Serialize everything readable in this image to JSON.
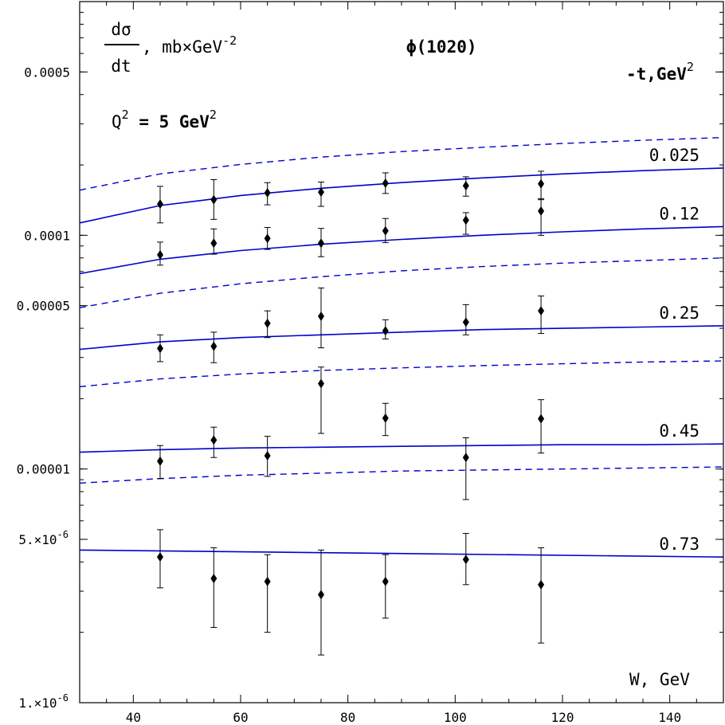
{
  "chart_data": {
    "type": "scatter",
    "title": "ϕ(1020)",
    "ylabel_numerator": "dσ",
    "ylabel_denominator": "dt",
    "ylabel_units_prefix": ", mb×GeV",
    "ylabel_units_exp": "-2",
    "legend_header_prefix": "-t,GeV",
    "legend_header_exp": "2",
    "condition_prefix": "Q",
    "condition_exp1": "2",
    "condition_mid": " = 5 GeV",
    "condition_exp2": "2",
    "xlabel": "W, GeV",
    "x_scale": "linear",
    "y_scale": "log",
    "xlim": [
      30,
      150
    ],
    "ylim": [
      1e-06,
      0.001
    ],
    "x_ticks": [
      40,
      60,
      80,
      100,
      120,
      140
    ],
    "x_tick_labels": [
      "40",
      "60",
      "80",
      "100",
      "120",
      "140"
    ],
    "y_ticks": [
      0.0005,
      0.0001,
      5e-05,
      1e-05,
      5e-06,
      1e-06
    ],
    "y_tick_labels": [
      "0.0005",
      "0.0001",
      "0.00005",
      "0.00001",
      "5.×10",
      "1.×10"
    ],
    "y_tick_label_exps": [
      "",
      "",
      "",
      "",
      "-6",
      "-6"
    ],
    "series": [
      {
        "name": "0.025",
        "color": "#0000cc",
        "points": [
          {
            "x": 45,
            "y": 0.000136,
            "ylo": 0.000113,
            "yhi": 0.000162
          },
          {
            "x": 55,
            "y": 0.000142,
            "ylo": 0.000117,
            "yhi": 0.000173
          },
          {
            "x": 65,
            "y": 0.000152,
            "ylo": 0.000135,
            "yhi": 0.000168
          },
          {
            "x": 75,
            "y": 0.000153,
            "ylo": 0.000133,
            "yhi": 0.000169
          },
          {
            "x": 87,
            "y": 0.000167,
            "ylo": 0.000151,
            "yhi": 0.000185
          },
          {
            "x": 102,
            "y": 0.000163,
            "ylo": 0.000147,
            "yhi": 0.000178
          },
          {
            "x": 116,
            "y": 0.000166,
            "ylo": 0.000142,
            "yhi": 0.000188
          }
        ],
        "curve": {
          "x": [
            30,
            45,
            60,
            75,
            90,
            105,
            120,
            135,
            150
          ],
          "y": [
            0.000113,
            0.000134,
            0.000148,
            0.000159,
            0.000168,
            0.000176,
            0.000183,
            0.000189,
            0.000194
          ]
        },
        "curve_dashed": {
          "x": [
            30,
            45,
            60,
            75,
            90,
            105,
            120,
            135,
            150
          ],
          "y": [
            0.000156,
            0.000183,
            0.000201,
            0.000216,
            0.000228,
            0.000238,
            0.000247,
            0.000255,
            0.000262
          ]
        }
      },
      {
        "name": "0.12",
        "color": "#0000cc",
        "points": [
          {
            "x": 45,
            "y": 8.25e-05,
            "ylo": 7.45e-05,
            "yhi": 9.35e-05
          },
          {
            "x": 55,
            "y": 9.25e-05,
            "ylo": 8.3e-05,
            "yhi": 0.0001065
          },
          {
            "x": 65,
            "y": 9.7e-05,
            "ylo": 8.7e-05,
            "yhi": 0.000108
          },
          {
            "x": 75,
            "y": 9.25e-05,
            "ylo": 8.1e-05,
            "yhi": 0.000107
          },
          {
            "x": 87,
            "y": 0.0001045,
            "ylo": 9.3e-05,
            "yhi": 0.000118
          },
          {
            "x": 102,
            "y": 0.000116,
            "ylo": 0.000101,
            "yhi": 0.000125
          },
          {
            "x": 116,
            "y": 0.000127,
            "ylo": 0.0001,
            "yhi": 0.0001435
          }
        ],
        "curve": {
          "x": [
            30,
            45,
            60,
            75,
            90,
            105,
            120,
            135,
            150
          ],
          "y": [
            6.85e-05,
            7.9e-05,
            8.6e-05,
            9.15e-05,
            9.6e-05,
            0.0001,
            0.0001035,
            0.0001065,
            0.000109
          ]
        },
        "curve_dashed": {
          "x": [
            30,
            45,
            60,
            75,
            90,
            105,
            120,
            135,
            150
          ],
          "y": [
            4.9e-05,
            5.65e-05,
            6.2e-05,
            6.65e-05,
            7.05e-05,
            7.35e-05,
            7.6e-05,
            7.8e-05,
            8e-05
          ]
        }
      },
      {
        "name": "0.25",
        "color": "#0000cc",
        "points": [
          {
            "x": 45,
            "y": 3.28e-05,
            "ylo": 2.88e-05,
            "yhi": 3.75e-05
          },
          {
            "x": 55,
            "y": 3.35e-05,
            "ylo": 2.85e-05,
            "yhi": 3.85e-05
          },
          {
            "x": 65,
            "y": 4.2e-05,
            "ylo": 3.65e-05,
            "yhi": 4.75e-05
          },
          {
            "x": 75,
            "y": 4.5e-05,
            "ylo": 3.3e-05,
            "yhi": 5.95e-05
          },
          {
            "x": 87,
            "y": 3.9e-05,
            "ylo": 3.6e-05,
            "yhi": 4.35e-05
          },
          {
            "x": 102,
            "y": 4.25e-05,
            "ylo": 3.75e-05,
            "yhi": 5.05e-05
          },
          {
            "x": 116,
            "y": 4.75e-05,
            "ylo": 3.8e-05,
            "yhi": 5.5e-05
          }
        ],
        "curve": {
          "x": [
            30,
            45,
            60,
            75,
            90,
            105,
            120,
            135,
            150
          ],
          "y": [
            3.25e-05,
            3.5e-05,
            3.65e-05,
            3.75e-05,
            3.85e-05,
            3.95e-05,
            4e-05,
            4.05e-05,
            4.1e-05
          ]
        },
        "curve_dashed": {
          "x": [
            30,
            45,
            60,
            75,
            90,
            105,
            120,
            135,
            150
          ],
          "y": [
            2.25e-05,
            2.43e-05,
            2.55e-05,
            2.64e-05,
            2.71e-05,
            2.77e-05,
            2.82e-05,
            2.87e-05,
            2.9e-05
          ]
        }
      },
      {
        "name": "0.45",
        "color": "#0000cc",
        "points": [
          {
            "x": 45,
            "y": 1.08e-05,
            "ylo": 9.1e-06,
            "yhi": 1.26e-05
          },
          {
            "x": 55,
            "y": 1.33e-05,
            "ylo": 1.12e-05,
            "yhi": 1.51e-05
          },
          {
            "x": 65,
            "y": 1.14e-05,
            "ylo": 9.3e-06,
            "yhi": 1.38e-05
          },
          {
            "x": 75,
            "y": 2.32e-05,
            "ylo": 1.42e-05,
            "yhi": 2.73e-05
          },
          {
            "x": 87,
            "y": 1.65e-05,
            "ylo": 1.39e-05,
            "yhi": 1.91e-05
          },
          {
            "x": 102,
            "y": 1.12e-05,
            "ylo": 7.4e-06,
            "yhi": 1.36e-05
          },
          {
            "x": 116,
            "y": 1.64e-05,
            "ylo": 1.17e-05,
            "yhi": 1.98e-05
          }
        ],
        "curve": {
          "x": [
            30,
            45,
            60,
            75,
            90,
            105,
            120,
            135,
            150
          ],
          "y": [
            1.18e-05,
            1.21e-05,
            1.23e-05,
            1.24e-05,
            1.25e-05,
            1.26e-05,
            1.27e-05,
            1.27e-05,
            1.28e-05
          ]
        },
        "curve_dashed": {
          "x": [
            30,
            45,
            60,
            75,
            90,
            105,
            120,
            135,
            150
          ],
          "y": [
            8.7e-06,
            9.1e-06,
            9.4e-06,
            9.6e-06,
            9.8e-06,
            9.9e-06,
            1e-05,
            1.01e-05,
            1.02e-05
          ]
        }
      },
      {
        "name": "0.73",
        "color": "#0000cc",
        "points": [
          {
            "x": 45,
            "y": 4.2e-06,
            "ylo": 3.1e-06,
            "yhi": 5.5e-06
          },
          {
            "x": 55,
            "y": 3.4e-06,
            "ylo": 2.1e-06,
            "yhi": 4.6e-06
          },
          {
            "x": 65,
            "y": 3.3e-06,
            "ylo": 2e-06,
            "yhi": 4.3e-06
          },
          {
            "x": 75,
            "y": 2.9e-06,
            "ylo": 1.6e-06,
            "yhi": 4.5e-06
          },
          {
            "x": 87,
            "y": 3.3e-06,
            "ylo": 2.3e-06,
            "yhi": 4.3e-06
          },
          {
            "x": 102,
            "y": 4.1e-06,
            "ylo": 3.2e-06,
            "yhi": 5.3e-06
          },
          {
            "x": 116,
            "y": 3.2e-06,
            "ylo": 1.8e-06,
            "yhi": 4.6e-06
          }
        ],
        "curve": {
          "x": [
            30,
            150
          ],
          "y": [
            4.5e-06,
            4.2e-06
          ]
        }
      }
    ]
  }
}
